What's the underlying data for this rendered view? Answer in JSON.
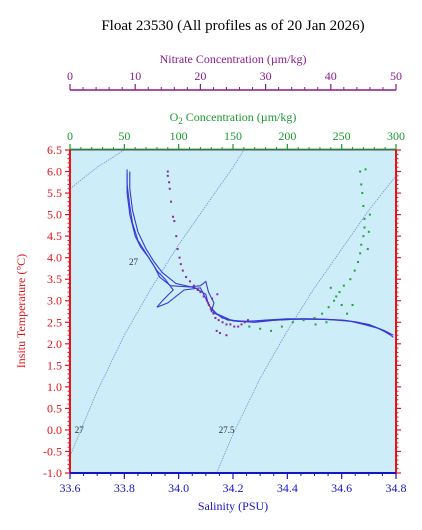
{
  "title": "Float 23530  (All profiles as of 20 Jan 2026)",
  "colors": {
    "background": "#cdeef8",
    "temperature_axis": "#e8121a",
    "salinity_axis": "#1515c8",
    "nitrate_axis": "#8b1a8b",
    "oxygen_axis": "#1a9a30",
    "salinity_profile": "#3838d8",
    "nitrate_points": "#8a2a9a",
    "oxygen_points": "#1fa03a",
    "density_contours": "#6f8fd8",
    "contour_labels": "#303030"
  },
  "chart_data": {
    "type": "scatter",
    "title": "Float 23530  (All profiles as of 20 Jan 2026)",
    "axes": {
      "salinity": {
        "label": "Salinity (PSU)",
        "range": [
          33.6,
          34.8
        ],
        "ticks": [
          "33.6",
          "33.8",
          "34.0",
          "34.2",
          "34.4",
          "34.6",
          "34.8"
        ],
        "position": "bottom"
      },
      "temperature": {
        "label": "Insitu Temperature (°C)",
        "range": [
          -1.0,
          6.5
        ],
        "ticks": [
          "-1.0",
          "-0.5",
          "0.0",
          "0.5",
          "1.0",
          "1.5",
          "2.0",
          "2.5",
          "3.0",
          "3.5",
          "4.0",
          "4.5",
          "5.0",
          "5.5",
          "6.0",
          "6.5"
        ],
        "position": "left"
      },
      "oxygen": {
        "label_parts": [
          "O",
          "2",
          " Concentration (µm/kg)"
        ],
        "range": [
          0,
          300
        ],
        "ticks": [
          "0",
          "50",
          "100",
          "150",
          "200",
          "250",
          "300"
        ],
        "position": "top (inner)"
      },
      "nitrate": {
        "label": "Nitrate Concentration (µm/kg)",
        "range": [
          0,
          50
        ],
        "ticks": [
          "0",
          "10",
          "20",
          "30",
          "40",
          "50"
        ],
        "position": "top (outer)"
      }
    },
    "density_contours": [
      {
        "label": "27",
        "points": [
          [
            33.6,
            5.6
          ],
          [
            33.7,
            6.1
          ],
          [
            33.8,
            6.5
          ]
        ]
      },
      {
        "label": "27",
        "points": [
          [
            33.6,
            -0.6
          ],
          [
            33.7,
            0.9
          ],
          [
            33.8,
            2.2
          ],
          [
            33.9,
            3.3
          ],
          [
            34.0,
            4.3
          ],
          [
            34.1,
            5.2
          ],
          [
            34.2,
            6.1
          ],
          [
            34.24,
            6.5
          ]
        ]
      },
      {
        "label": "27.5",
        "points": [
          [
            34.14,
            -1.0
          ],
          [
            34.2,
            -0.1
          ],
          [
            34.3,
            1.2
          ],
          [
            34.4,
            2.3
          ],
          [
            34.5,
            3.3
          ],
          [
            34.6,
            4.2
          ],
          [
            34.7,
            5.1
          ],
          [
            34.8,
            5.9
          ]
        ]
      }
    ],
    "contour_labels": [
      {
        "text": "27",
        "salinity": 33.81,
        "temperature": 3.9
      },
      {
        "text": "27",
        "salinity": 33.61,
        "temperature": 0.0
      },
      {
        "text": "27.5",
        "salinity": 34.14,
        "temperature": 0.0
      }
    ],
    "series": [
      {
        "kind": "salinity_profiles",
        "profiles": [
          [
            [
              33.81,
              6.05
            ],
            [
              33.81,
              5.7
            ],
            [
              33.82,
              5.2
            ],
            [
              33.83,
              4.8
            ],
            [
              33.85,
              4.4
            ],
            [
              33.88,
              4.1
            ],
            [
              33.91,
              3.8
            ],
            [
              33.93,
              3.55
            ],
            [
              33.97,
              3.35
            ],
            [
              34.04,
              3.32
            ],
            [
              34.08,
              3.35
            ],
            [
              34.1,
              3.45
            ],
            [
              34.11,
              3.2
            ],
            [
              34.13,
              2.95
            ],
            [
              34.12,
              2.75
            ],
            [
              34.18,
              2.55
            ],
            [
              34.25,
              2.52
            ],
            [
              34.32,
              2.55
            ],
            [
              34.4,
              2.58
            ],
            [
              34.5,
              2.58
            ],
            [
              34.6,
              2.55
            ],
            [
              34.66,
              2.5
            ],
            [
              34.72,
              2.4
            ],
            [
              34.77,
              2.25
            ],
            [
              34.79,
              2.15
            ]
          ],
          [
            [
              33.82,
              6.0
            ],
            [
              33.82,
              5.6
            ],
            [
              33.83,
              5.1
            ],
            [
              33.85,
              4.6
            ],
            [
              33.88,
              4.2
            ],
            [
              33.91,
              3.9
            ],
            [
              33.94,
              3.65
            ],
            [
              33.99,
              3.4
            ],
            [
              34.06,
              3.3
            ],
            [
              34.1,
              3.15
            ],
            [
              34.11,
              2.9
            ],
            [
              34.14,
              2.7
            ],
            [
              34.2,
              2.53
            ],
            [
              34.28,
              2.5
            ],
            [
              34.36,
              2.55
            ],
            [
              34.46,
              2.58
            ],
            [
              34.56,
              2.56
            ],
            [
              34.64,
              2.52
            ],
            [
              34.7,
              2.45
            ],
            [
              34.76,
              2.3
            ],
            [
              34.79,
              2.2
            ]
          ],
          [
            [
              33.81,
              5.95
            ],
            [
              33.81,
              5.5
            ],
            [
              33.82,
              5.0
            ],
            [
              33.84,
              4.5
            ],
            [
              33.86,
              4.25
            ],
            [
              33.89,
              4.0
            ],
            [
              33.92,
              3.7
            ],
            [
              33.95,
              3.5
            ],
            [
              33.98,
              3.25
            ],
            [
              33.94,
              3.0
            ],
            [
              33.92,
              2.85
            ],
            [
              33.96,
              2.95
            ],
            [
              34.02,
              3.25
            ],
            [
              34.08,
              3.3
            ],
            [
              34.1,
              3.05
            ],
            [
              34.12,
              2.8
            ],
            [
              34.16,
              2.6
            ],
            [
              34.22,
              2.52
            ],
            [
              34.3,
              2.53
            ],
            [
              34.42,
              2.57
            ],
            [
              34.54,
              2.57
            ],
            [
              34.62,
              2.54
            ],
            [
              34.68,
              2.45
            ],
            [
              34.74,
              2.35
            ],
            [
              34.78,
              2.2
            ]
          ]
        ]
      },
      {
        "kind": "nitrate_points",
        "points": [
          [
            15,
            6.0
          ],
          [
            15,
            5.9
          ],
          [
            15.2,
            5.75
          ],
          [
            15.3,
            5.6
          ],
          [
            15.5,
            5.3
          ],
          [
            15.8,
            4.95
          ],
          [
            16,
            4.85
          ],
          [
            16.3,
            4.5
          ],
          [
            16.5,
            4.2
          ],
          [
            16.8,
            4.0
          ],
          [
            17,
            3.85
          ],
          [
            17.3,
            3.7
          ],
          [
            17.8,
            3.55
          ],
          [
            18.4,
            3.45
          ],
          [
            19,
            3.35
          ],
          [
            19.6,
            3.25
          ],
          [
            20,
            3.2
          ],
          [
            20.5,
            3.1
          ],
          [
            21,
            3.0
          ],
          [
            21.3,
            2.9
          ],
          [
            21.6,
            2.8
          ],
          [
            22,
            2.7
          ],
          [
            22.3,
            2.6
          ],
          [
            22.8,
            2.55
          ],
          [
            23.4,
            2.5
          ],
          [
            24,
            2.45
          ],
          [
            24.6,
            2.45
          ],
          [
            25.2,
            2.4
          ],
          [
            25.8,
            2.4
          ],
          [
            26.3,
            2.45
          ],
          [
            26.8,
            2.5
          ],
          [
            27.3,
            2.55
          ],
          [
            22.5,
            2.3
          ],
          [
            23,
            2.25
          ],
          [
            24,
            2.2
          ],
          [
            21.2,
            2.95
          ],
          [
            21.8,
            3.05
          ],
          [
            22.6,
            3.15
          ]
        ]
      },
      {
        "kind": "oxygen_points",
        "points": [
          [
            165,
            2.4
          ],
          [
            175,
            2.35
          ],
          [
            185,
            2.3
          ],
          [
            195,
            2.4
          ],
          [
            205,
            2.5
          ],
          [
            215,
            2.55
          ],
          [
            225,
            2.6
          ],
          [
            232,
            2.7
          ],
          [
            238,
            2.85
          ],
          [
            243,
            3.0
          ],
          [
            248,
            3.2
          ],
          [
            252,
            3.35
          ],
          [
            258,
            3.5
          ],
          [
            262,
            3.7
          ],
          [
            265,
            3.9
          ],
          [
            267,
            4.1
          ],
          [
            268,
            4.3
          ],
          [
            270,
            4.5
          ],
          [
            271,
            4.7
          ],
          [
            271,
            4.9
          ],
          [
            270,
            5.2
          ],
          [
            269,
            5.5
          ],
          [
            268,
            5.7
          ],
          [
            267,
            6.0
          ],
          [
            272,
            6.05
          ],
          [
            276,
            5.0
          ],
          [
            275,
            4.6
          ],
          [
            274,
            4.2
          ],
          [
            240,
            3.3
          ],
          [
            245,
            3.1
          ],
          [
            250,
            2.9
          ],
          [
            226,
            2.45
          ],
          [
            236,
            2.5
          ],
          [
            255,
            2.7
          ],
          [
            260,
            2.9
          ]
        ]
      }
    ],
    "grid": false
  }
}
